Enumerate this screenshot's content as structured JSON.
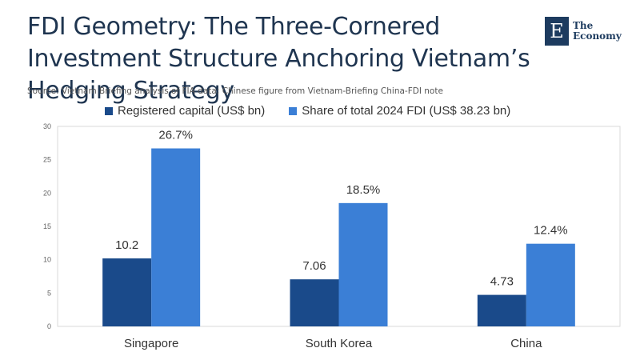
{
  "title": "FDI Geometry: The Three-Cornered Investment Structure Anchoring Vietnam’s Hedging Strategy",
  "source": "Source:  Vietnam Briefing analysis of FIA data; Chinese figure from Vietnam-Briefing China-FDI note",
  "logo": {
    "mark": "E",
    "line1": "The",
    "line2": "Economy"
  },
  "colors": {
    "series1": "#1a4a8a",
    "series2": "#3b7fd6"
  },
  "chart_data": {
    "type": "bar",
    "categories": [
      "Singapore",
      "South Korea",
      "China"
    ],
    "series": [
      {
        "name": "Registered capital (US$ bn)",
        "values": [
          10.2,
          7.06,
          4.73
        ],
        "labels": [
          "10.2",
          "7.06",
          "4.73"
        ]
      },
      {
        "name": "Share of total 2024 FDI (US$ 38.23 bn)",
        "values": [
          26.7,
          18.5,
          12.4
        ],
        "labels": [
          "26.7%",
          "18.5%",
          "12.4%"
        ]
      }
    ],
    "ylim": [
      0,
      30
    ],
    "yticks": [
      "0",
      "5",
      "10",
      "15",
      "20",
      "25",
      "30"
    ],
    "legend": "top",
    "grid": false
  }
}
